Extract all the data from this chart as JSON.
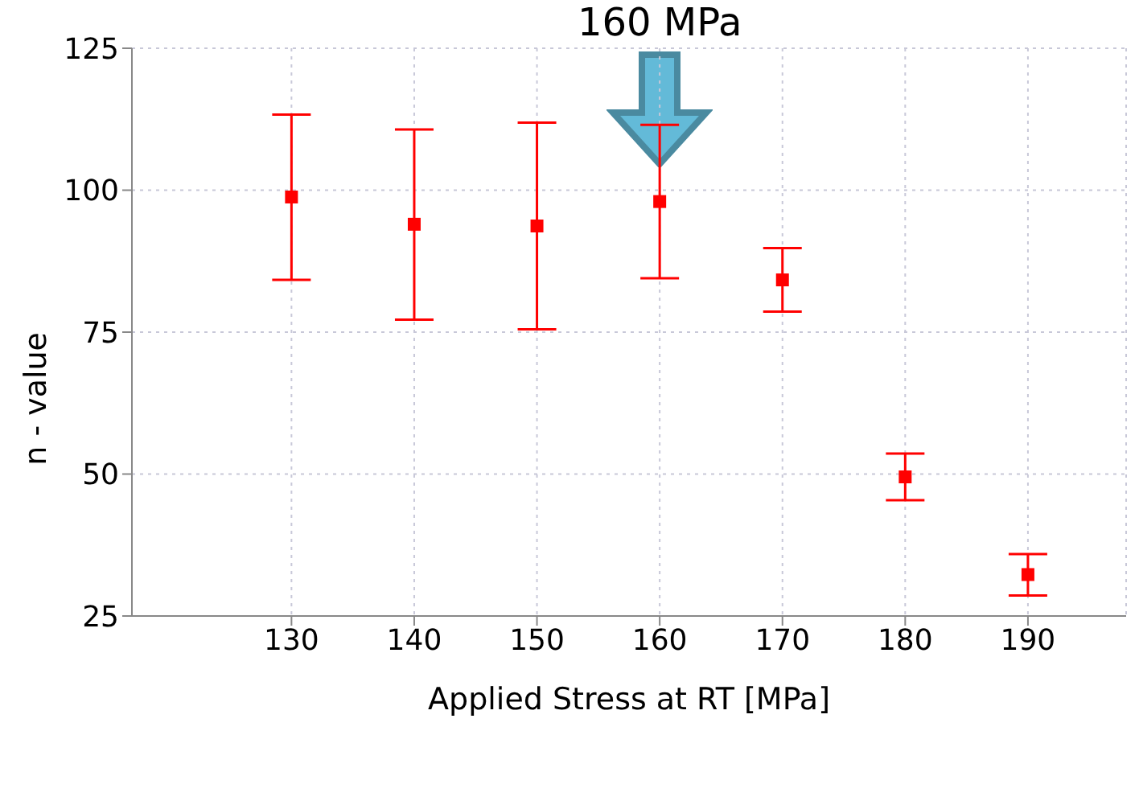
{
  "chart_data": {
    "type": "scatter",
    "xlabel": "Applied Stress at RT [MPa]",
    "ylabel": "n - value",
    "annotations": [
      "160 MPa"
    ],
    "x": [
      130,
      140,
      150,
      160,
      170,
      180,
      190
    ],
    "series": [
      {
        "color": "#ff0000",
        "values": [
          98.8,
          94,
          93.7,
          98,
          84.2,
          49.5,
          32.3
        ],
        "errors": [
          [
            84.2,
            113.3
          ],
          [
            77.2,
            110.7
          ],
          [
            75.5,
            111.9
          ],
          [
            84.5,
            111.5
          ],
          [
            78.6,
            89.8
          ],
          [
            45.4,
            53.6
          ],
          [
            28.6,
            35.9
          ]
        ]
      }
    ],
    "xlim": [
      117,
      198
    ],
    "xticks": [
      130,
      140,
      150,
      160,
      170,
      180,
      190
    ],
    "ylim": [
      25,
      125
    ],
    "yticks": [
      25,
      50,
      75,
      100,
      125
    ],
    "grid": true,
    "marker": "square"
  }
}
